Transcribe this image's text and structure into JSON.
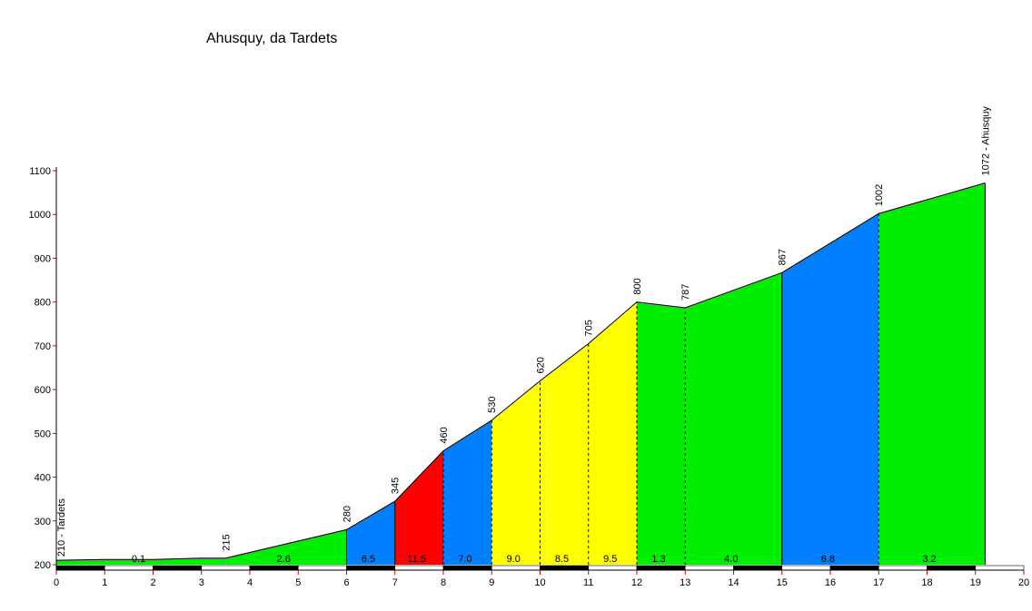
{
  "chart_data": {
    "type": "area",
    "title": "Ahusquy, da Tardets",
    "xlabel": "",
    "ylabel": "",
    "xlim": [
      0,
      20
    ],
    "ylim": [
      200,
      1100
    ],
    "x_ticks": [
      0,
      1,
      2,
      3,
      4,
      5,
      6,
      7,
      8,
      9,
      10,
      11,
      12,
      13,
      14,
      15,
      16,
      17,
      18,
      19,
      20
    ],
    "y_ticks": [
      200,
      300,
      400,
      500,
      600,
      700,
      800,
      900,
      1000,
      1100
    ],
    "profile": [
      {
        "x": 0,
        "y": 210
      },
      {
        "x": 1,
        "y": 212
      },
      {
        "x": 2,
        "y": 212
      },
      {
        "x": 3,
        "y": 215
      },
      {
        "x": 3.5,
        "y": 215
      },
      {
        "x": 6,
        "y": 280
      },
      {
        "x": 7,
        "y": 345
      },
      {
        "x": 8,
        "y": 460
      },
      {
        "x": 9,
        "y": 530
      },
      {
        "x": 10,
        "y": 620
      },
      {
        "x": 11,
        "y": 705
      },
      {
        "x": 12,
        "y": 800
      },
      {
        "x": 13,
        "y": 787
      },
      {
        "x": 15,
        "y": 867
      },
      {
        "x": 17,
        "y": 1002
      },
      {
        "x": 19.2,
        "y": 1072
      }
    ],
    "segments": [
      {
        "x0": 0,
        "x1": 3.5,
        "grade_label": "0.1",
        "label_x": 1.7,
        "color": "#00ee00"
      },
      {
        "x0": 3.5,
        "x1": 6,
        "grade_label": "2.6",
        "label_x": 4.7,
        "color": "#00ee00"
      },
      {
        "x0": 6,
        "x1": 7,
        "grade_label": "6.5",
        "label_x": 6.45,
        "color": "#0080ff"
      },
      {
        "x0": 7,
        "x1": 8,
        "grade_label": "11.5",
        "label_x": 7.45,
        "color": "#ff0000"
      },
      {
        "x0": 8,
        "x1": 9,
        "grade_label": "7.0",
        "label_x": 8.45,
        "color": "#0080ff"
      },
      {
        "x0": 9,
        "x1": 10,
        "grade_label": "9.0",
        "label_x": 9.45,
        "color": "#ffff00"
      },
      {
        "x0": 10,
        "x1": 11,
        "grade_label": "8.5",
        "label_x": 10.45,
        "color": "#ffff00"
      },
      {
        "x0": 11,
        "x1": 12,
        "grade_label": "9.5",
        "label_x": 11.45,
        "color": "#ffff00"
      },
      {
        "x0": 12,
        "x1": 13,
        "grade_label": "1.3",
        "label_x": 12.45,
        "color": "#00ee00"
      },
      {
        "x0": 13,
        "x1": 15,
        "grade_label": "4.0",
        "label_x": 13.95,
        "color": "#00ee00"
      },
      {
        "x0": 15,
        "x1": 17,
        "grade_label": "6.8",
        "label_x": 15.95,
        "color": "#0080ff"
      },
      {
        "x0": 17,
        "x1": 19.2,
        "grade_label": "3.2",
        "label_x": 18.05,
        "color": "#00ee00"
      }
    ],
    "elevation_labels": [
      {
        "x": 0,
        "y": 210,
        "text": "210 - Tardets",
        "placement": "inside"
      },
      {
        "x": 3.5,
        "y": 215,
        "text": "215",
        "placement": "above"
      },
      {
        "x": 6,
        "y": 280,
        "text": "280",
        "placement": "above"
      },
      {
        "x": 7,
        "y": 345,
        "text": "345",
        "placement": "above"
      },
      {
        "x": 8,
        "y": 460,
        "text": "460",
        "placement": "above"
      },
      {
        "x": 9,
        "y": 530,
        "text": "530",
        "placement": "above"
      },
      {
        "x": 10,
        "y": 620,
        "text": "620",
        "placement": "above"
      },
      {
        "x": 11,
        "y": 705,
        "text": "705",
        "placement": "above"
      },
      {
        "x": 12,
        "y": 800,
        "text": "800",
        "placement": "above"
      },
      {
        "x": 13,
        "y": 787,
        "text": "787",
        "placement": "above"
      },
      {
        "x": 15,
        "y": 867,
        "text": "867",
        "placement": "above"
      },
      {
        "x": 17,
        "y": 1002,
        "text": "1002",
        "placement": "above"
      },
      {
        "x": 19.2,
        "y": 1072,
        "text": "1072 - Ahusquy",
        "placement": "above"
      }
    ],
    "dashed_dividers_at": [
      8,
      9,
      10,
      11,
      12,
      13,
      17
    ],
    "colors": {
      "easy": "#00ee00",
      "moderate": "#0080ff",
      "hard": "#ffff00",
      "steep": "#ff0000",
      "axis": "#000000",
      "axis_tick": "#cc0000"
    },
    "grid": false,
    "legend": "none"
  }
}
